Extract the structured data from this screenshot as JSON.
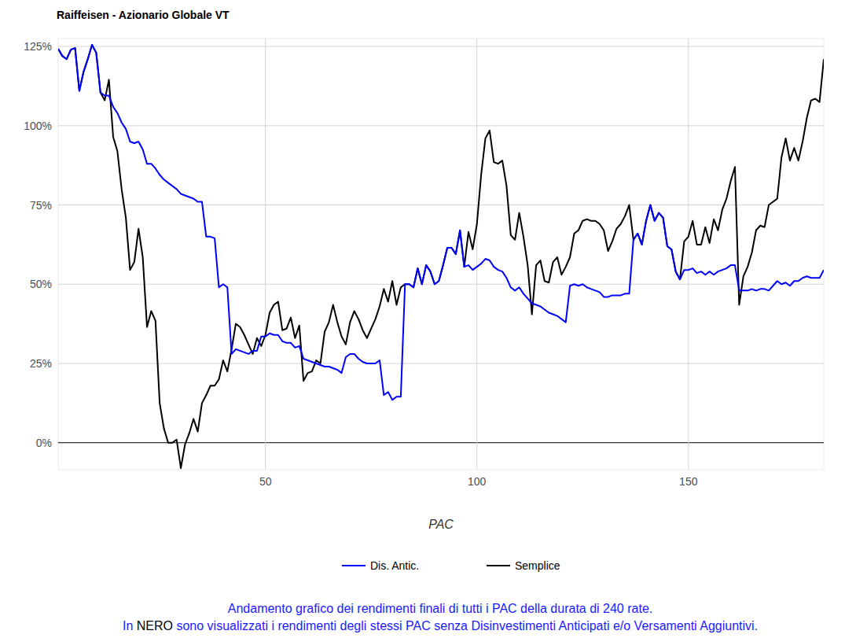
{
  "chart_data": {
    "type": "line",
    "title": "Raiffeisen - Azionario Globale VT",
    "x_label": "PAC",
    "caption": {
      "line1": "Andamento grafico dei rendimenti finali di tutti i PAC della durata di 240 rate.",
      "line2_before": "In ",
      "line2_highlight": "NERO",
      "line2_after": " sono visualizzati i rendimenti degli stessi PAC senza Disinvestimenti Anticipati e/o Versamenti Aggiuntivi."
    },
    "x": [
      1,
      2,
      3,
      4,
      5,
      6,
      7,
      8,
      9,
      10,
      11,
      12,
      13,
      14,
      15,
      16,
      17,
      18,
      19,
      20,
      21,
      22,
      23,
      24,
      25,
      26,
      27,
      28,
      29,
      30,
      31,
      32,
      33,
      34,
      35,
      36,
      37,
      38,
      39,
      40,
      41,
      42,
      43,
      44,
      45,
      46,
      47,
      48,
      49,
      50,
      51,
      52,
      53,
      54,
      55,
      56,
      57,
      58,
      59,
      60,
      61,
      62,
      63,
      64,
      65,
      66,
      67,
      68,
      69,
      70,
      71,
      72,
      73,
      74,
      75,
      76,
      77,
      78,
      79,
      80,
      81,
      82,
      83,
      84,
      85,
      86,
      87,
      88,
      89,
      90,
      91,
      92,
      93,
      94,
      95,
      96,
      97,
      98,
      99,
      100,
      101,
      102,
      103,
      104,
      105,
      106,
      107,
      108,
      109,
      110,
      111,
      112,
      113,
      114,
      115,
      116,
      117,
      118,
      119,
      120,
      121,
      122,
      123,
      124,
      125,
      126,
      127,
      128,
      129,
      130,
      131,
      132,
      133,
      134,
      135,
      136,
      137,
      138,
      139,
      140,
      141,
      142,
      143,
      144,
      145,
      146,
      147,
      148,
      149,
      150,
      151,
      152,
      153,
      154,
      155,
      156,
      157,
      158,
      159,
      160,
      161,
      162,
      163,
      164,
      165,
      166,
      167,
      168,
      169,
      170,
      171,
      172,
      173,
      174,
      175,
      176,
      177,
      178,
      179,
      180,
      181,
      182
    ],
    "series": [
      {
        "name": "Dis. Antic.",
        "color": "#0000ff",
        "values": [
          124.3,
          122,
          121,
          124,
          124.5,
          111,
          117,
          121,
          125.5,
          123,
          110.5,
          109.5,
          109.5,
          106,
          104,
          101,
          99,
          95,
          94.5,
          95,
          92.5,
          88,
          88,
          86.5,
          84.5,
          83,
          82,
          81,
          80,
          78.5,
          78,
          77.5,
          77,
          76,
          76,
          65,
          65,
          64.5,
          49,
          50,
          49,
          28,
          29.5,
          29,
          28.5,
          28,
          29,
          29,
          33.5,
          33.5,
          34.5,
          34,
          34,
          32,
          31.5,
          31.5,
          30,
          30.5,
          26.5,
          26,
          25.5,
          25,
          24.5,
          24,
          24,
          23.5,
          23,
          22,
          27,
          28,
          28,
          26.5,
          25.5,
          25,
          25,
          25,
          26,
          15,
          16,
          13.5,
          14.5,
          14.5,
          50,
          50,
          49,
          55,
          50,
          56,
          54,
          50,
          51,
          56,
          61.5,
          61.5,
          59.5,
          67,
          55.5,
          56,
          54.5,
          55.5,
          56.5,
          58,
          57.5,
          55.5,
          54.5,
          54,
          52,
          49,
          48,
          49,
          47,
          45.5,
          44,
          43.5,
          43,
          42,
          41,
          40.5,
          40,
          39,
          38,
          49.5,
          50,
          49.5,
          50,
          49,
          48.5,
          48,
          47.5,
          46,
          46,
          46.5,
          46.5,
          46.5,
          47,
          47,
          64,
          66,
          62.5,
          70,
          75,
          70,
          72.5,
          71,
          62,
          61,
          54,
          51.5,
          54.5,
          54.5,
          55,
          53.5,
          54,
          53,
          54,
          53,
          54,
          54.5,
          55,
          56,
          56,
          48,
          48,
          48,
          48.5,
          48,
          48.5,
          48.5,
          48,
          49.5,
          51,
          50,
          50.5,
          49.5,
          51,
          51,
          52,
          52.5,
          52,
          52,
          52,
          54.5
        ]
      },
      {
        "name": "Semplice",
        "color": "#000000",
        "values": [
          124.3,
          122,
          121,
          124,
          124.5,
          111,
          117,
          121,
          125.5,
          123,
          110.5,
          108,
          114.5,
          96.5,
          92,
          80,
          71,
          54.5,
          57,
          67.5,
          58.5,
          36.5,
          41.5,
          38.5,
          12.5,
          4.5,
          0,
          0,
          1,
          -8,
          -0.5,
          3,
          7.5,
          3.5,
          12.5,
          15,
          18,
          18,
          20,
          26,
          22.5,
          29.5,
          37.5,
          36.5,
          34,
          31,
          28,
          33,
          30.5,
          34,
          41,
          43.5,
          44.5,
          35.5,
          36,
          39.5,
          33,
          37,
          19.5,
          22,
          22.5,
          26,
          25,
          35,
          38,
          43.5,
          38,
          33.5,
          31,
          38,
          41.5,
          39,
          35.5,
          33,
          36,
          39,
          43,
          48.5,
          44.5,
          51,
          43.5,
          49,
          50,
          50,
          49,
          55,
          50,
          56,
          54,
          50,
          51,
          56,
          61.5,
          61.5,
          59.5,
          67,
          55.5,
          66.5,
          61,
          69,
          84.5,
          96,
          98.5,
          88.5,
          88,
          89,
          81,
          65.5,
          64,
          72.5,
          65,
          56,
          40.5,
          56,
          57.5,
          51,
          50.5,
          57,
          58.5,
          53,
          55.5,
          58.5,
          66,
          67,
          70,
          70.5,
          70,
          70,
          69,
          67,
          60.5,
          63.5,
          67.5,
          69,
          71.5,
          75,
          64,
          66,
          62.5,
          70,
          75,
          70,
          72.5,
          71,
          62,
          61,
          54,
          51.5,
          63.5,
          65,
          70,
          62.5,
          62.5,
          68,
          63,
          70.5,
          67,
          73.5,
          77,
          82.5,
          87,
          43.5,
          52.5,
          55.5,
          60,
          67,
          68.5,
          68,
          75,
          76,
          77,
          90,
          96,
          89,
          93,
          89,
          95,
          102.5,
          108,
          108.5,
          107.5,
          121
        ]
      }
    ],
    "xlim": [
      1,
      182
    ],
    "ylim": [
      -8.5,
      127.5
    ],
    "xticks": [
      50,
      100,
      150
    ],
    "yticks": [
      {
        "value": 0,
        "label": "0%"
      },
      {
        "value": 25,
        "label": "25%"
      },
      {
        "value": 50,
        "label": "50%"
      },
      {
        "value": 75,
        "label": "75%"
      },
      {
        "value": 100,
        "label": "100%"
      },
      {
        "value": 125,
        "label": "125%"
      }
    ],
    "grid": true,
    "legend": "bottom"
  }
}
